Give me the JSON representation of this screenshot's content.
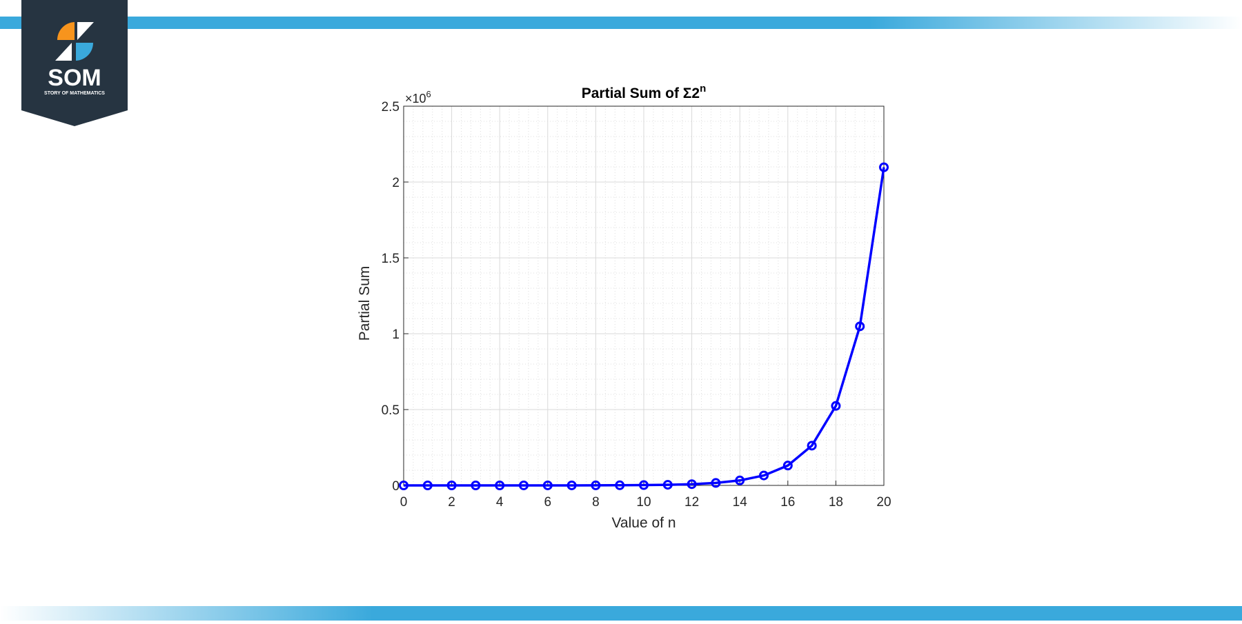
{
  "logo": {
    "name": "SOM",
    "tagline": "STORY OF MATHEMATICS"
  },
  "chart_data": {
    "type": "line",
    "title": "Partial Sum of Σ2",
    "title_superscript": "n",
    "x_label": "Value of n",
    "y_label": "Partial Sum",
    "y_exponent": {
      "base": "×10",
      "power": "6"
    },
    "x": [
      0,
      1,
      2,
      3,
      4,
      5,
      6,
      7,
      8,
      9,
      10,
      11,
      12,
      13,
      14,
      15,
      16,
      17,
      18,
      19,
      20
    ],
    "series": [
      {
        "name": "Partial Sum",
        "color": "#0000ff",
        "values": [
          1,
          3,
          7,
          15,
          31,
          63,
          127,
          255,
          511,
          1023,
          2047,
          4095,
          8191,
          16383,
          32767,
          65535,
          131071,
          262143,
          524287,
          1048575,
          2097151
        ]
      }
    ],
    "xlim": [
      0,
      20
    ],
    "xticks": [
      0,
      2,
      4,
      6,
      8,
      10,
      12,
      14,
      16,
      18,
      20
    ],
    "ylim": [
      0,
      2500000
    ],
    "yticks": [
      {
        "value": 0,
        "label": "0"
      },
      {
        "value": 500000,
        "label": "0.5"
      },
      {
        "value": 1000000,
        "label": "1"
      },
      {
        "value": 1500000,
        "label": "1.5"
      },
      {
        "value": 2000000,
        "label": "2"
      },
      {
        "value": 2500000,
        "label": "2.5"
      }
    ],
    "grid": true,
    "minor_grid": true,
    "markers": "circle"
  }
}
